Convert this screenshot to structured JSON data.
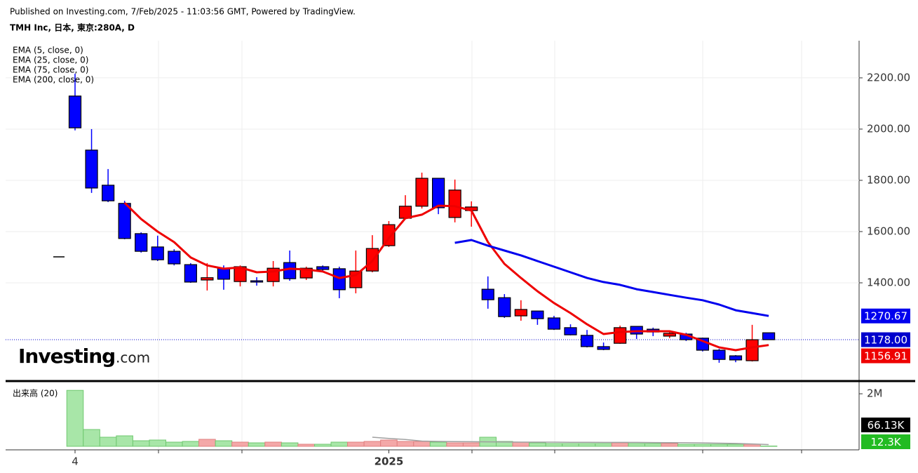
{
  "header": {
    "published": "Published on Investing.com, 7/Feb/2025 - 11:03:56 GMT, Powered by TradingView.",
    "symbol": "TMH Inc, 日本, 東京:280A, D"
  },
  "logo": {
    "brand": "Investing",
    "suffix": ".com"
  },
  "chart_data": [
    {
      "type": "candlestick",
      "ylim": [
        1022,
        2345
      ],
      "yticks": [
        {
          "value": 1400,
          "label": "1400.00"
        },
        {
          "value": 1600,
          "label": "1600.00"
        },
        {
          "value": 1800,
          "label": "1800.00"
        },
        {
          "value": 2000,
          "label": "2000.00"
        },
        {
          "value": 2200,
          "label": "2200.00"
        }
      ],
      "grid": true,
      "categories": [
        "4",
        null,
        null,
        null,
        null,
        null,
        null,
        null,
        null,
        null,
        null,
        null,
        null,
        null,
        null,
        null,
        null,
        null,
        null,
        "2025",
        null,
        null,
        null,
        null,
        null,
        null,
        null,
        null,
        null,
        null,
        null,
        null,
        null,
        null,
        null,
        null,
        null,
        null,
        null,
        null,
        null,
        null,
        null
      ],
      "open": [
        2129,
        1918,
        1781,
        1710,
        1592,
        1540,
        1523,
        1471,
        1411,
        1457,
        1405,
        1408,
        1405,
        1479,
        1419,
        1463,
        1455,
        1381,
        1446,
        1545,
        1652,
        1699,
        1808,
        1655,
        1682,
        1375,
        1342,
        1271,
        1290,
        1263,
        1225,
        1195,
        1151,
        1164,
        1230,
        1219,
        1192,
        1200,
        1184,
        1137,
        1115,
        1096,
        1205
      ],
      "high": [
        2216,
        2000,
        1844,
        1720,
        1597,
        1584,
        1531,
        1477,
        1477,
        1468,
        1468,
        1422,
        1485,
        1526,
        1463,
        1468,
        1463,
        1526,
        1586,
        1641,
        1742,
        1830,
        1808,
        1803,
        1718,
        1425,
        1356,
        1332,
        1290,
        1271,
        1238,
        1216,
        1167,
        1233,
        1230,
        1225,
        1211,
        1205,
        1186,
        1142,
        1118,
        1236,
        1205
      ],
      "low": [
        1995,
        1751,
        1715,
        1570,
        1518,
        1485,
        1468,
        1400,
        1370,
        1373,
        1386,
        1389,
        1386,
        1408,
        1411,
        1446,
        1340,
        1359,
        1441,
        1540,
        1649,
        1690,
        1668,
        1636,
        1619,
        1299,
        1263,
        1252,
        1236,
        1216,
        1195,
        1148,
        1137,
        1162,
        1181,
        1192,
        1184,
        1173,
        1132,
        1088,
        1090,
        1093,
        1178
      ],
      "close": [
        2005,
        1770,
        1720,
        1573,
        1523,
        1490,
        1474,
        1403,
        1420,
        1414,
        1463,
        1403,
        1457,
        1416,
        1457,
        1452,
        1373,
        1446,
        1534,
        1627,
        1699,
        1808,
        1693,
        1762,
        1696,
        1334,
        1268,
        1296,
        1260,
        1219,
        1197,
        1151,
        1140,
        1225,
        1200,
        1208,
        1203,
        1178,
        1137,
        1101,
        1099,
        1178,
        1178
      ],
      "up_color": "#ff0000",
      "down_color": "#0000ff",
      "last_label": "1178.00",
      "last_color": "#0000cc",
      "series": [
        {
          "name": "EMA (5, close, 0)",
          "color": "#ee0000",
          "values": [
            null,
            null,
            null,
            1712,
            1649,
            1600,
            1559,
            1499,
            1468,
            1455,
            1460,
            1441,
            1444,
            1455,
            1452,
            1444,
            1419,
            1430,
            1485,
            1575,
            1652,
            1666,
            1701,
            1699,
            1682,
            1559,
            1474,
            1419,
            1367,
            1321,
            1282,
            1238,
            1200,
            1208,
            1211,
            1211,
            1211,
            1197,
            1173,
            1148,
            1137,
            1148,
            1156.91
          ],
          "last_label": "1156.91"
        },
        {
          "name": "EMA (25, close, 0)",
          "color": "#0000ee",
          "values": [
            null,
            null,
            null,
            null,
            null,
            null,
            null,
            null,
            null,
            null,
            null,
            null,
            null,
            null,
            null,
            null,
            null,
            null,
            null,
            null,
            null,
            null,
            null,
            1556,
            1567,
            1545,
            1526,
            1507,
            1485,
            1463,
            1441,
            1419,
            1403,
            1392,
            1375,
            1364,
            1353,
            1342,
            1332,
            1315,
            1293,
            1282,
            1270.67
          ],
          "last_label": "1270.67"
        },
        {
          "name": "EMA (75, close, 0)"
        },
        {
          "name": "EMA (200, close, 0)"
        }
      ]
    },
    {
      "type": "bar",
      "title": "出来高 (20)",
      "ylim": [
        0,
        2430000
      ],
      "yticks": [
        {
          "value": 2000000,
          "label": "2M"
        }
      ],
      "values": [
        2130000,
        640000,
        347000,
        400000,
        213000,
        240000,
        160000,
        187000,
        267000,
        213000,
        160000,
        133000,
        160000,
        133000,
        80000,
        80000,
        160000,
        160000,
        187000,
        240000,
        187000,
        187000,
        160000,
        133000,
        133000,
        347000,
        187000,
        160000,
        133000,
        107000,
        107000,
        107000,
        107000,
        133000,
        107000,
        107000,
        107000,
        80000,
        80000,
        80000,
        80000,
        80000,
        12300
      ],
      "last_label": "12.3K",
      "last_color": "#22bb22",
      "up_color": "#f4a8a8",
      "down_color": "#a8e6a8",
      "series": [
        {
          "color": "#a0a0a0",
          "values": [
            null,
            null,
            null,
            null,
            null,
            null,
            null,
            null,
            null,
            null,
            null,
            null,
            null,
            null,
            null,
            null,
            null,
            null,
            347000,
            300000,
            260000,
            200000,
            187000,
            180000,
            175000,
            170000,
            165000,
            160000,
            160000,
            160000,
            155000,
            155000,
            150000,
            150000,
            150000,
            145000,
            140000,
            135000,
            130000,
            120000,
            110000,
            90000,
            66130
          ],
          "last_label": "66.13K",
          "last_color": "#000000"
        }
      ]
    }
  ]
}
